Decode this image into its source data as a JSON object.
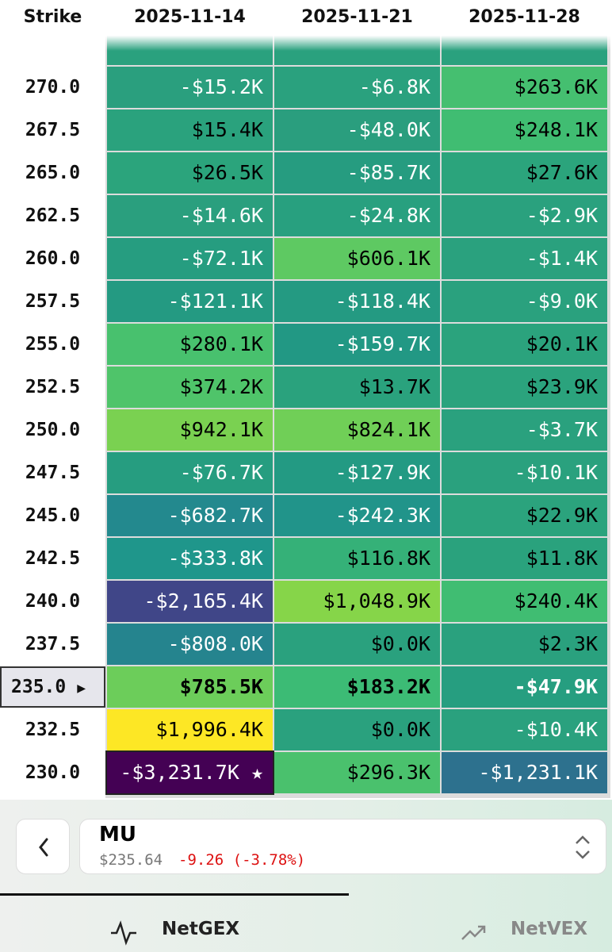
{
  "header": {
    "columns": [
      "Strike",
      "2025-11-14",
      "2025-11-21",
      "2025-11-28"
    ]
  },
  "table": {
    "rows": [
      {
        "strike": "270.0",
        "cells": [
          {
            "text": "-$15.2K",
            "color": "#2a9f7e"
          },
          {
            "text": "-$6.8K",
            "color": "#2aa17e"
          },
          {
            "text": "$263.6K",
            "color": "#45bf70"
          }
        ]
      },
      {
        "strike": "267.5",
        "cells": [
          {
            "text": "$15.4K",
            "color": "#2aa27d"
          },
          {
            "text": "-$48.0K",
            "color": "#2a9e7e"
          },
          {
            "text": "$248.1K",
            "color": "#40bd72"
          }
        ]
      },
      {
        "strike": "265.0",
        "cells": [
          {
            "text": "$26.5K",
            "color": "#2ba47c"
          },
          {
            "text": "-$85.7K",
            "color": "#269c80"
          },
          {
            "text": "$27.6K",
            "color": "#2ba47c"
          }
        ]
      },
      {
        "strike": "262.5",
        "cells": [
          {
            "text": "-$14.6K",
            "color": "#2a9f7e"
          },
          {
            "text": "-$24.8K",
            "color": "#28a07f"
          },
          {
            "text": "-$2.9K",
            "color": "#2aa17e"
          }
        ]
      },
      {
        "strike": "260.0",
        "cells": [
          {
            "text": "-$72.1K",
            "color": "#269d80"
          },
          {
            "text": "$606.1K",
            "color": "#5ec962"
          },
          {
            "text": "-$1.4K",
            "color": "#2aa17e"
          }
        ]
      },
      {
        "strike": "257.5",
        "cells": [
          {
            "text": "-$121.1K",
            "color": "#249a82"
          },
          {
            "text": "-$118.4K",
            "color": "#249a82"
          },
          {
            "text": "-$9.0K",
            "color": "#2aa17e"
          }
        ]
      },
      {
        "strike": "255.0",
        "cells": [
          {
            "text": "$280.1K",
            "color": "#48c16e"
          },
          {
            "text": "-$159.7K",
            "color": "#229884"
          },
          {
            "text": "$20.1K",
            "color": "#2ba37d"
          }
        ]
      },
      {
        "strike": "252.5",
        "cells": [
          {
            "text": "$374.2K",
            "color": "#4fc46a"
          },
          {
            "text": "$13.7K",
            "color": "#2aa27d"
          },
          {
            "text": "$23.9K",
            "color": "#2ba37d"
          }
        ]
      },
      {
        "strike": "250.0",
        "cells": [
          {
            "text": "$942.1K",
            "color": "#7ad151"
          },
          {
            "text": "$824.1K",
            "color": "#70cf57"
          },
          {
            "text": "-$3.7K",
            "color": "#2aa17e"
          }
        ]
      },
      {
        "strike": "247.5",
        "cells": [
          {
            "text": "-$76.7K",
            "color": "#269d80"
          },
          {
            "text": "-$127.9K",
            "color": "#239a83"
          },
          {
            "text": "-$10.1K",
            "color": "#2aa17e"
          }
        ]
      },
      {
        "strike": "245.0",
        "cells": [
          {
            "text": "-$682.7K",
            "color": "#23898e"
          },
          {
            "text": "-$242.3K",
            "color": "#21948a"
          },
          {
            "text": "$22.9K",
            "color": "#2ba37d"
          }
        ]
      },
      {
        "strike": "242.5",
        "cells": [
          {
            "text": "-$333.8K",
            "color": "#1f968b"
          },
          {
            "text": "$116.8K",
            "color": "#35b178"
          },
          {
            "text": "$11.8K",
            "color": "#2aa27d"
          }
        ]
      },
      {
        "strike": "240.0",
        "cells": [
          {
            "text": "-$2,165.4K",
            "color": "#404688"
          },
          {
            "text": "$1,048.9K",
            "color": "#86d549"
          },
          {
            "text": "$240.4K",
            "color": "#40bd72"
          }
        ]
      },
      {
        "strike": "237.5",
        "cells": [
          {
            "text": "-$808.0K",
            "color": "#25848e"
          },
          {
            "text": "$0.0K",
            "color": "#2aa17e"
          },
          {
            "text": "$2.3K",
            "color": "#2aa17e"
          }
        ]
      },
      {
        "strike": "235.0",
        "current": true,
        "marker": "▶",
        "cells": [
          {
            "text": "$785.5K",
            "color": "#6ccd5a"
          },
          {
            "text": "$183.2K",
            "color": "#3cbb75"
          },
          {
            "text": "-$47.9K",
            "color": "#269e80"
          }
        ]
      },
      {
        "strike": "232.5",
        "cells": [
          {
            "text": "$1,996.4K",
            "color": "#fde725"
          },
          {
            "text": "$0.0K",
            "color": "#2aa17e"
          },
          {
            "text": "-$10.4K",
            "color": "#2aa17e"
          }
        ]
      },
      {
        "strike": "230.0",
        "cells": [
          {
            "text": "-$3,231.7K ★",
            "color": "#440154"
          },
          {
            "text": "$296.3K",
            "color": "#4ac16d"
          },
          {
            "text": "-$1,231.1K",
            "color": "#2d718e"
          }
        ]
      }
    ]
  },
  "ticker": {
    "symbol": "MU",
    "price": "$235.64",
    "change": "-9.26 (-3.78%)"
  },
  "tabs": [
    "NetGEX",
    "NetVEX"
  ]
}
